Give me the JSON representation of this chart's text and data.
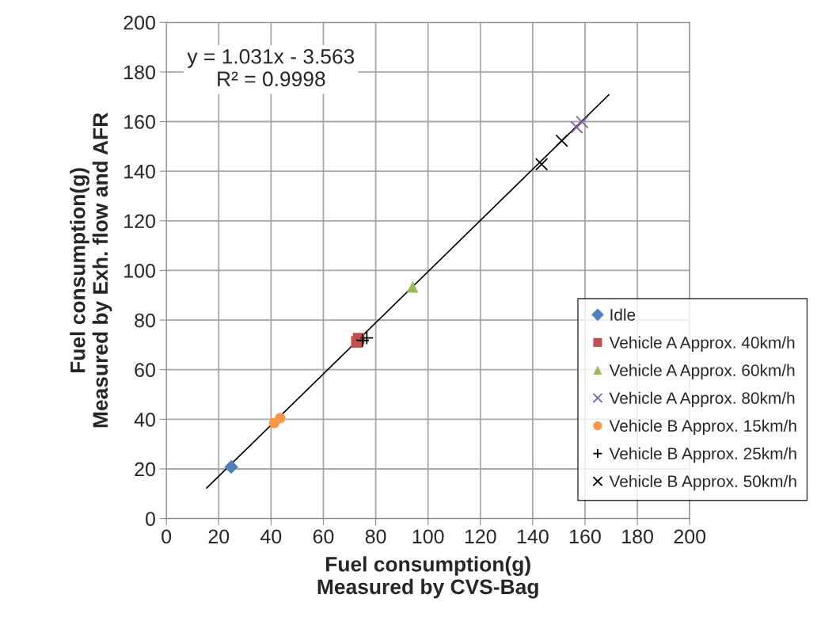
{
  "chart_data": {
    "type": "scatter",
    "xlabel": "Fuel consumption(g)\nMeasured by CVS-Bag",
    "ylabel": "Fuel consumption(g)\nMeasured by Exh. flow and AFR",
    "xlim": [
      0,
      200
    ],
    "ylim": [
      0,
      200
    ],
    "xticks": [
      0,
      20,
      40,
      60,
      80,
      100,
      120,
      140,
      160,
      180,
      200
    ],
    "yticks": [
      0,
      20,
      40,
      60,
      80,
      100,
      120,
      140,
      160,
      180,
      200
    ],
    "grid": true,
    "legend": "right",
    "annotations": [
      "y = 1.031x - 3.563\nR² = 0.9998"
    ],
    "series": [
      {
        "name": "Idle",
        "color": "#4f81bd",
        "marker": "diamond",
        "x": [
          24.8
        ],
        "values": [
          20.8
        ]
      },
      {
        "name": "Vehicle A Approx. 40km/h",
        "color": "#c0504d",
        "marker": "square",
        "x": [
          72.8,
          73.5
        ],
        "values": [
          71.2,
          72.5
        ]
      },
      {
        "name": "Vehicle A Approx. 60km/h",
        "color": "#9bbb59",
        "marker": "triangle",
        "x": [
          94.1
        ],
        "values": [
          93.4
        ]
      },
      {
        "name": "Vehicle A Approx. 80km/h",
        "color": "#8064a2",
        "marker": "cross",
        "x": [
          156.8,
          158.9
        ],
        "values": [
          157.7,
          159.8
        ]
      },
      {
        "name": "Vehicle B Approx. 15km/h",
        "color": "#f79646",
        "marker": "circle",
        "x": [
          41.2,
          43.5
        ],
        "values": [
          38.5,
          40.5
        ]
      },
      {
        "name": "Vehicle B Approx. 25km/h",
        "color": "#000000",
        "marker": "plus",
        "x": [
          75.0,
          76.6
        ],
        "values": [
          71.8,
          72.8
        ]
      },
      {
        "name": "Vehicle B Approx. 50km/h",
        "color": "#000000",
        "marker": "cross",
        "x": [
          143.4,
          151.1
        ],
        "values": [
          142.8,
          152.3
        ]
      },
      {
        "type": "line",
        "color": "#000000",
        "marker": "none",
        "x": [
          15.4,
          169.1
        ],
        "values": [
          12.3,
          170.8
        ]
      }
    ]
  }
}
